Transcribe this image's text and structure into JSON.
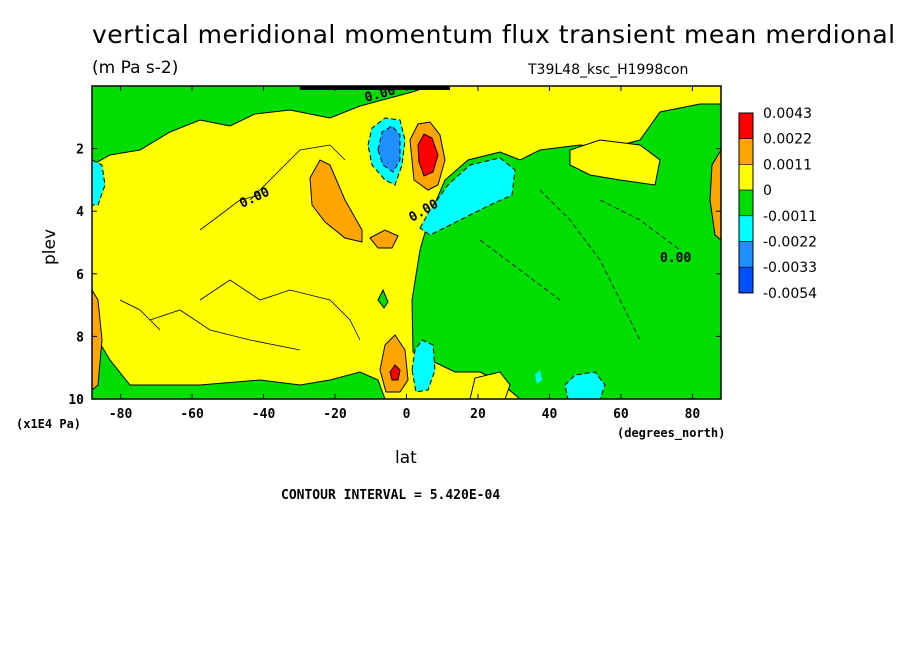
{
  "title": "vertical meridional momentum flux transient mean merdional",
  "units": "(m Pa s-2)",
  "run_id": "T39L48_ksc_H1998con",
  "contour_interval": "CONTOUR INTERVAL = 5.420E-04",
  "chart_data": {
    "type": "contour",
    "xlabel": "lat",
    "xunits": "(degrees_north)",
    "ylabel": "plev",
    "yunits": "(x1E4 Pa)",
    "xlim": [
      -88,
      88
    ],
    "ylim": [
      0,
      10
    ],
    "x_ticks": [
      -80,
      -60,
      -40,
      -20,
      0,
      20,
      40,
      60,
      80
    ],
    "y_ticks": [
      2,
      4,
      6,
      8,
      10
    ],
    "contour_labels": [
      "0.00",
      "0.00",
      "0.00",
      "0.00"
    ],
    "legend": [
      {
        "label": "0.0043",
        "color": "#ff0000"
      },
      {
        "label": "0.0022",
        "color": "#ffa500"
      },
      {
        "label": "0.0011",
        "color": "#ffff00"
      },
      {
        "label": "0",
        "color": "#00dd00"
      },
      {
        "label": "-0.0011",
        "color": "#00ffff"
      },
      {
        "label": "-0.0022",
        "color": "#1e90ff"
      },
      {
        "label": "-0.0033",
        "color": "#0050ff"
      },
      {
        "label": "-0.0054",
        "color": ""
      }
    ],
    "features": [
      {
        "name": "negative-core",
        "lat": -6,
        "plev": 2.0,
        "level": "-0.0033"
      },
      {
        "name": "positive-core",
        "lat": 5,
        "plev": 2.0,
        "level": "0.0043"
      },
      {
        "name": "positive-lobe",
        "lat": -20,
        "plev": 3.5,
        "level": "0.0022"
      },
      {
        "name": "negative-band",
        "lat": 22,
        "plev": 3.2,
        "level": "-0.0011"
      },
      {
        "name": "positive-lower",
        "lat": -4,
        "plev": 9.0,
        "level": "0.0022"
      },
      {
        "name": "negative-lower",
        "lat": 5,
        "plev": 9.0,
        "level": "-0.0011"
      }
    ]
  }
}
